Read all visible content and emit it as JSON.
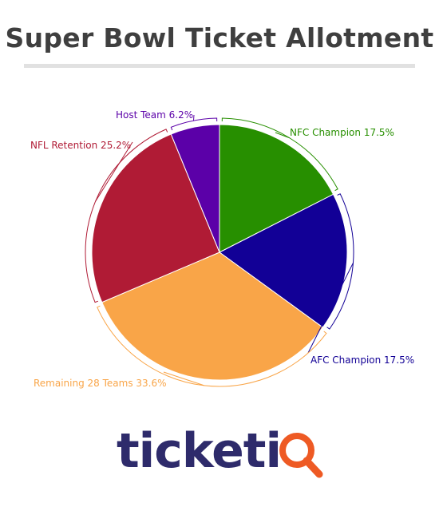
{
  "title": "Super Bowl Ticket Allotment",
  "chart_data": {
    "type": "pie",
    "title": "Super Bowl Ticket Allotment",
    "start_angle_deg": 0,
    "slices": [
      {
        "label": "NFC Champion",
        "value": 17.5,
        "display": "NFC Champion 17.5%",
        "color": "#278f00"
      },
      {
        "label": "AFC Champion",
        "value": 17.5,
        "display": "AFC Champion 17.5%",
        "color": "#120096"
      },
      {
        "label": "Remaining 28 Teams",
        "value": 33.6,
        "display": "Remaining 28 Teams 33.6%",
        "color": "#f9a548"
      },
      {
        "label": "NFL Retention",
        "value": 25.2,
        "display": "NFL Retention 25.2%",
        "color": "#b01b35"
      },
      {
        "label": "Host Team",
        "value": 6.2,
        "display": "Host Team 6.2%",
        "color": "#5b00a8"
      }
    ]
  },
  "logo": {
    "text": "ticketiQ",
    "word": "ticketi",
    "brand_color": "#2e2b6b",
    "accent_color": "#ee5a24",
    "icon": "magnifier-q-icon"
  }
}
